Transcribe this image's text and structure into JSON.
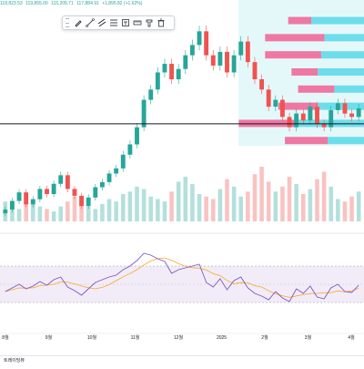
{
  "ohlc": {
    "open": "118,823.53",
    "high": "119,855.00",
    "low": "115,209.71",
    "close": "117,884.91",
    "change": "+1,895.82 (+1.62%)"
  },
  "toolbar": {
    "tools": [
      {
        "name": "pencil-icon"
      },
      {
        "name": "trend-line-icon"
      },
      {
        "name": "channel-icon"
      },
      {
        "name": "fib-retracement-icon"
      },
      {
        "name": "text-icon"
      },
      {
        "name": "measure-icon"
      },
      {
        "name": "anchor-icon"
      },
      {
        "name": "trash-icon"
      }
    ]
  },
  "footer": {
    "label": "트레이딩뷰"
  },
  "colors": {
    "up": "#26a69a",
    "down": "#ef5350",
    "vp_up": "#59d8e8",
    "vp_down": "#f06292",
    "vp_area": "#b2ebf2",
    "rsi_line": "#7e57c2",
    "rsi_ma": "#f9a825",
    "rsi_band": "#ede7f6",
    "price_line": "#131722"
  },
  "chart_data": {
    "type": "candlestick",
    "x_tick_labels": [
      "8월",
      "9월",
      "10월",
      "11월",
      "12월",
      "2025",
      "2월",
      "3월",
      "4월"
    ],
    "price_series": [
      56000,
      58500,
      61000,
      57500,
      59000,
      62000,
      60500,
      63500,
      66000,
      62000,
      60000,
      57000,
      59500,
      62500,
      64000,
      66500,
      68000,
      72000,
      75000,
      80000,
      88000,
      91000,
      96000,
      98500,
      94000,
      97000,
      101000,
      104000,
      108000,
      101000,
      98000,
      102000,
      96000,
      101000,
      105000,
      99000,
      94000,
      91000,
      86000,
      88000,
      83000,
      80000,
      84000,
      82000,
      86000,
      81000,
      80000,
      85000,
      87000,
      84000,
      83000,
      85500
    ],
    "horizontal_line_value": 81000,
    "volume_series": [
      8,
      6,
      5,
      7,
      9,
      6,
      5,
      4,
      6,
      8,
      10,
      7,
      6,
      5,
      7,
      9,
      8,
      11,
      12,
      14,
      13,
      10,
      9,
      8,
      12,
      16,
      18,
      15,
      11,
      10,
      9,
      13,
      17,
      14,
      10,
      12,
      19,
      22,
      16,
      12,
      14,
      18,
      15,
      11,
      13,
      17,
      20,
      14,
      9,
      8,
      10,
      12
    ],
    "rsi_series": [
      42,
      46,
      50,
      45,
      48,
      53,
      49,
      55,
      58,
      47,
      43,
      38,
      45,
      52,
      55,
      58,
      60,
      66,
      70,
      76,
      84,
      82,
      78,
      75,
      62,
      66,
      68,
      70,
      72,
      52,
      47,
      56,
      44,
      54,
      58,
      46,
      40,
      37,
      33,
      42,
      35,
      31,
      45,
      40,
      48,
      36,
      34,
      46,
      50,
      42,
      41,
      49
    ],
    "rsi_band": [
      30,
      70
    ],
    "volume_profile": {
      "rows": [
        {
          "price": 111000,
          "up": 80,
          "down": 35
        },
        {
          "price": 106000,
          "up": 60,
          "down": 90
        },
        {
          "price": 101000,
          "up": 65,
          "down": 85
        },
        {
          "price": 96000,
          "up": 70,
          "down": 40
        },
        {
          "price": 91000,
          "up": 45,
          "down": 55
        },
        {
          "price": 86000,
          "up": 70,
          "down": 60
        },
        {
          "price": 81000,
          "up": 100,
          "down": 90
        },
        {
          "price": 76000,
          "up": 55,
          "down": 65
        }
      ]
    }
  }
}
